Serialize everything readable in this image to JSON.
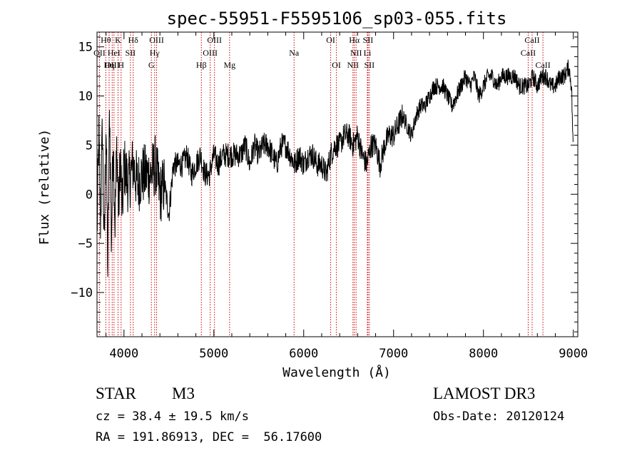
{
  "chart_data": {
    "type": "line",
    "title": "spec-55951-F5595106_sp03-055.fits",
    "xlabel": "Wavelength (Å)",
    "ylabel": "Flux (relative)",
    "xlim": [
      3700,
      9050
    ],
    "ylim": [
      -14.5,
      16.5
    ],
    "xticks": [
      {
        "value": 4000,
        "label": "4000"
      },
      {
        "value": 5000,
        "label": "5000"
      },
      {
        "value": 6000,
        "label": "6000"
      },
      {
        "value": 7000,
        "label": "7000"
      },
      {
        "value": 8000,
        "label": "8000"
      },
      {
        "value": 9000,
        "label": "9000"
      }
    ],
    "yticks": [
      {
        "value": 15,
        "label": "15"
      },
      {
        "value": 10,
        "label": "10"
      },
      {
        "value": 5,
        "label": "5"
      },
      {
        "value": 0,
        "label": "0"
      },
      {
        "value": -5,
        "label": "−5"
      },
      {
        "value": -10,
        "label": "−10"
      }
    ],
    "series": [
      {
        "name": "spectrum",
        "color": "#000000",
        "x": [
          3700,
          3720,
          3740,
          3760,
          3780,
          3800,
          3820,
          3840,
          3860,
          3880,
          3900,
          3920,
          3940,
          3960,
          3980,
          4000,
          4050,
          4100,
          4150,
          4200,
          4250,
          4300,
          4350,
          4400,
          4450,
          4500,
          4550,
          4600,
          4650,
          4700,
          4750,
          4800,
          4850,
          4900,
          4950,
          5000,
          5050,
          5100,
          5150,
          5200,
          5250,
          5300,
          5350,
          5400,
          5450,
          5500,
          5550,
          5600,
          5650,
          5700,
          5750,
          5800,
          5850,
          5900,
          5950,
          6000,
          6050,
          6100,
          6150,
          6200,
          6250,
          6300,
          6350,
          6400,
          6450,
          6500,
          6550,
          6600,
          6650,
          6700,
          6750,
          6800,
          6850,
          6900,
          6950,
          7000,
          7050,
          7100,
          7150,
          7200,
          7250,
          7300,
          7350,
          7400,
          7450,
          7500,
          7550,
          7600,
          7650,
          7700,
          7750,
          7800,
          7850,
          7900,
          7950,
          8000,
          8050,
          8100,
          8150,
          8200,
          8250,
          8300,
          8350,
          8400,
          8450,
          8500,
          8550,
          8600,
          8650,
          8700,
          8750,
          8800,
          8850,
          8900,
          8950,
          8980,
          9000
        ],
        "y": [
          -4,
          6,
          -3,
          7,
          -6,
          8,
          -8,
          9,
          -5,
          6,
          -3,
          5,
          -2,
          4,
          -2,
          3,
          1,
          3,
          1,
          2,
          2,
          2,
          3,
          0,
          1,
          -2,
          3,
          3,
          3,
          4,
          2,
          3,
          4,
          2,
          2,
          4,
          3,
          4,
          4,
          4,
          4,
          4,
          5,
          3,
          5,
          4,
          5,
          5,
          4,
          3,
          5,
          5,
          4,
          3,
          4,
          3,
          4,
          4,
          3,
          3,
          2,
          4,
          5,
          5,
          6,
          6,
          5,
          6,
          4,
          3,
          5,
          5,
          3,
          5,
          6,
          6,
          7,
          8,
          7,
          6,
          8,
          9,
          9,
          10,
          11,
          11,
          11,
          10,
          9,
          10,
          11,
          12,
          11,
          12,
          10,
          11,
          12,
          12,
          11,
          12,
          12,
          12,
          12,
          11,
          11,
          11,
          12,
          11,
          12,
          12,
          11,
          11,
          12,
          12,
          13,
          11,
          4
        ]
      }
    ],
    "lines": [
      {
        "label": "Hθ",
        "wavelength": 3798,
        "row": 0
      },
      {
        "label": "OII",
        "wavelength": 3727,
        "row": 1
      },
      {
        "label": "OIII",
        "wavelength": 3869,
        "row": 2
      },
      {
        "label": "K",
        "wavelength": 3934,
        "row": 0
      },
      {
        "label": "Hη",
        "wavelength": 3835,
        "row": 2
      },
      {
        "label": "HeI",
        "wavelength": 3889,
        "row": 1
      },
      {
        "label": "H",
        "wavelength": 3968,
        "row": 2
      },
      {
        "label": "SII",
        "wavelength": 4072,
        "row": 1
      },
      {
        "label": "Hδ",
        "wavelength": 4102,
        "row": 0
      },
      {
        "label": "OIII",
        "wavelength": 4363,
        "row": 0
      },
      {
        "label": "Hγ",
        "wavelength": 4341,
        "row": 1
      },
      {
        "label": "G",
        "wavelength": 4305,
        "row": 2
      },
      {
        "label": "OIII",
        "wavelength": 5007,
        "row": 0
      },
      {
        "label": "OIII",
        "wavelength": 4959,
        "row": 1
      },
      {
        "label": "Hβ",
        "wavelength": 4861,
        "row": 2
      },
      {
        "label": "Mg",
        "wavelength": 5175,
        "row": 2
      },
      {
        "label": "Na",
        "wavelength": 5893,
        "row": 1
      },
      {
        "label": "OI",
        "wavelength": 6300,
        "row": 0
      },
      {
        "label": "OI",
        "wavelength": 6364,
        "row": 2
      },
      {
        "label": "Hα",
        "wavelength": 6563,
        "row": 0
      },
      {
        "label": "SII",
        "wavelength": 6716,
        "row": 0
      },
      {
        "label": "NII",
        "wavelength": 6583,
        "row": 1
      },
      {
        "label": "Li",
        "wavelength": 6708,
        "row": 1
      },
      {
        "label": "NII",
        "wavelength": 6548,
        "row": 2
      },
      {
        "label": "SII",
        "wavelength": 6731,
        "row": 2
      },
      {
        "label": "CaII",
        "wavelength": 8542,
        "row": 0
      },
      {
        "label": "CaII",
        "wavelength": 8498,
        "row": 1
      },
      {
        "label": "CaII",
        "wavelength": 8662,
        "row": 2
      }
    ],
    "line_color": "#cc0000"
  },
  "info": {
    "object_class": "STAR",
    "subclass": "M3",
    "survey": "LAMOST DR3",
    "cz": "cz = 38.4 ± 19.5 km/s",
    "obs_date": "Obs-Date: 20120124",
    "coords": "RA = 191.86913, DEC =  56.17600"
  }
}
